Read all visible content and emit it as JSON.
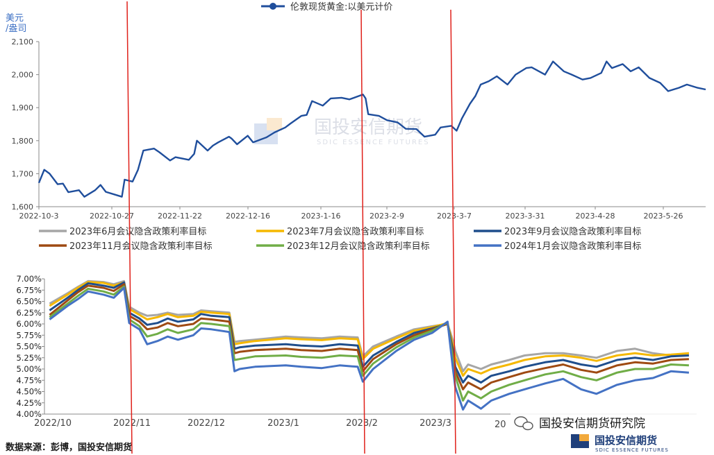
{
  "top_chart": {
    "unit_label_line1": "美元",
    "unit_label_line2": "/盎司",
    "legend_label": "伦敦现货黄金:以美元计价",
    "watermark_cn": "国投安信期货",
    "watermark_en": "SDIC ESSENCE FUTURES"
  },
  "bottom_chart": {
    "source_text": "数据来源：彭博，国投安信期货",
    "wechat_handle": "国投安信期货研究院",
    "logo_cn": "国投安信期货",
    "logo_en": "SDIC ESSENCE FUTURES",
    "partial_tick": "20"
  },
  "colors": {
    "gold_line": "#1f4e9c",
    "red_marker": "#e0201a",
    "series_jun": "#a6a6a6",
    "series_jul": "#f5b800",
    "series_sep": "#1f4e8c",
    "series_nov": "#9e4a12",
    "series_dec": "#70ad47",
    "series_jan": "#4472c4"
  },
  "chart_data": [
    {
      "type": "line",
      "ylabel": "美元/盎司",
      "ylim": [
        1600,
        2100
      ],
      "yticks": [
        "1,600",
        "1,700",
        "1,800",
        "1,900",
        "2,000",
        "2,100"
      ],
      "xticks": [
        "2022-10-3",
        "2022-10-27",
        "2022-11-22",
        "2022-12-16",
        "2023-1-16",
        "2023-2-9",
        "2023-3-7",
        "2023-3-31",
        "2023-4-28",
        "2023-5-26"
      ],
      "grid": "none",
      "legend_position": "top-center",
      "series": [
        {
          "name": "伦敦现货黄金:以美元计价",
          "x": [
            "2022-10-03",
            "2022-10-05",
            "2022-10-07",
            "2022-10-10",
            "2022-10-12",
            "2022-10-14",
            "2022-10-18",
            "2022-10-20",
            "2022-10-24",
            "2022-10-26",
            "2022-10-28",
            "2022-11-01",
            "2022-11-03",
            "2022-11-04",
            "2022-11-07",
            "2022-11-09",
            "2022-11-11",
            "2022-11-15",
            "2022-11-17",
            "2022-11-21",
            "2022-11-23",
            "2022-11-28",
            "2022-11-30",
            "2022-12-01",
            "2022-12-05",
            "2022-12-07",
            "2022-12-09",
            "2022-12-13",
            "2022-12-14",
            "2022-12-16",
            "2022-12-20",
            "2022-12-22",
            "2022-12-27",
            "2022-12-30",
            "2023-01-03",
            "2023-01-05",
            "2023-01-09",
            "2023-01-11",
            "2023-01-13",
            "2023-01-17",
            "2023-01-20",
            "2023-01-24",
            "2023-01-27",
            "2023-02-01",
            "2023-02-02",
            "2023-02-03",
            "2023-02-07",
            "2023-02-10",
            "2023-02-14",
            "2023-02-17",
            "2023-02-21",
            "2023-02-24",
            "2023-02-28",
            "2023-03-02",
            "2023-03-06",
            "2023-03-08",
            "2023-03-10",
            "2023-03-13",
            "2023-03-15",
            "2023-03-17",
            "2023-03-20",
            "2023-03-23",
            "2023-03-27",
            "2023-03-30",
            "2023-04-03",
            "2023-04-05",
            "2023-04-10",
            "2023-04-13",
            "2023-04-17",
            "2023-04-20",
            "2023-04-24",
            "2023-04-27",
            "2023-05-01",
            "2023-05-03",
            "2023-05-05",
            "2023-05-09",
            "2023-05-12",
            "2023-05-15",
            "2023-05-19",
            "2023-05-23",
            "2023-05-26",
            "2023-05-30",
            "2023-06-02",
            "2023-06-06",
            "2023-06-09"
          ],
          "values": [
            1672,
            1712,
            1700,
            1668,
            1670,
            1644,
            1650,
            1630,
            1650,
            1666,
            1645,
            1635,
            1630,
            1682,
            1676,
            1712,
            1770,
            1776,
            1765,
            1740,
            1750,
            1742,
            1760,
            1800,
            1770,
            1785,
            1795,
            1812,
            1806,
            1789,
            1815,
            1795,
            1810,
            1825,
            1840,
            1852,
            1875,
            1878,
            1920,
            1906,
            1928,
            1930,
            1925,
            1940,
            1928,
            1880,
            1875,
            1862,
            1855,
            1836,
            1835,
            1812,
            1818,
            1840,
            1845,
            1830,
            1868,
            1912,
            1935,
            1970,
            1980,
            1995,
            1970,
            2000,
            2020,
            2022,
            2000,
            2040,
            2010,
            2000,
            1985,
            1990,
            2005,
            2040,
            2020,
            2032,
            2010,
            2022,
            1990,
            1975,
            1950,
            1960,
            1970,
            1960,
            1955
          ]
        }
      ]
    },
    {
      "type": "line",
      "ylim": [
        4.0,
        7.0
      ],
      "yticks": [
        "4.00%",
        "4.25%",
        "4.50%",
        "4.75%",
        "5.00%",
        "5.25%",
        "5.50%",
        "5.75%",
        "6.00%",
        "6.25%",
        "6.50%",
        "6.75%",
        "7.00%"
      ],
      "xticks": [
        "2022/10",
        "2022/11",
        "2022/12",
        "2023/1",
        "2023/2",
        "2023/3"
      ],
      "grid": "none",
      "legend_position": "top",
      "x": [
        "2022-10-03",
        "2022-10-10",
        "2022-10-14",
        "2022-10-18",
        "2022-10-24",
        "2022-10-28",
        "2022-11-01",
        "2022-11-03",
        "2022-11-07",
        "2022-11-10",
        "2022-11-14",
        "2022-11-18",
        "2022-11-22",
        "2022-11-28",
        "2022-12-01",
        "2022-12-05",
        "2022-12-12",
        "2022-12-14",
        "2022-12-16",
        "2022-12-22",
        "2023-01-03",
        "2023-01-09",
        "2023-01-17",
        "2023-01-24",
        "2023-01-31",
        "2023-02-02",
        "2023-02-06",
        "2023-02-15",
        "2023-02-22",
        "2023-03-01",
        "2023-03-07",
        "2023-03-09",
        "2023-03-10",
        "2023-03-13",
        "2023-03-15",
        "2023-03-20",
        "2023-03-24",
        "2023-03-31",
        "2023-04-06",
        "2023-04-14",
        "2023-04-21",
        "2023-04-28",
        "2023-05-04",
        "2023-05-12",
        "2023-05-19",
        "2023-05-26",
        "2023-06-02",
        "2023-06-09"
      ],
      "series": [
        {
          "name": "2023年6月会议隐含政策利率目标",
          "values": [
            6.45,
            6.68,
            6.82,
            6.95,
            6.93,
            6.88,
            6.95,
            6.38,
            6.25,
            6.18,
            6.2,
            6.25,
            6.2,
            6.22,
            6.3,
            6.28,
            6.25,
            5.6,
            5.62,
            5.65,
            5.72,
            5.7,
            5.68,
            5.72,
            5.7,
            5.28,
            5.5,
            5.72,
            5.88,
            5.95,
            6.0,
            5.65,
            5.4,
            4.95,
            5.1,
            5.0,
            5.1,
            5.2,
            5.3,
            5.35,
            5.35,
            5.3,
            5.25,
            5.4,
            5.45,
            5.35,
            5.3,
            5.35
          ]
        },
        {
          "name": "2023年7月会议隐含政策利率目标",
          "values": [
            6.4,
            6.65,
            6.8,
            6.93,
            6.91,
            6.85,
            6.92,
            6.33,
            6.2,
            6.1,
            6.15,
            6.22,
            6.15,
            6.18,
            6.27,
            6.25,
            6.22,
            5.55,
            5.57,
            5.62,
            5.68,
            5.66,
            5.64,
            5.68,
            5.66,
            5.22,
            5.45,
            5.68,
            5.85,
            5.93,
            6.02,
            5.55,
            5.25,
            4.85,
            5.0,
            4.9,
            5.0,
            5.1,
            5.2,
            5.28,
            5.3,
            5.25,
            5.18,
            5.3,
            5.35,
            5.3,
            5.32,
            5.35
          ]
        },
        {
          "name": "2023年9月会议隐含政策利率目标",
          "values": [
            6.3,
            6.58,
            6.75,
            6.9,
            6.85,
            6.8,
            6.92,
            6.25,
            6.12,
            5.98,
            6.02,
            6.12,
            6.05,
            6.1,
            6.22,
            6.18,
            6.15,
            5.45,
            5.48,
            5.52,
            5.55,
            5.52,
            5.5,
            5.55,
            5.52,
            5.05,
            5.3,
            5.6,
            5.8,
            5.9,
            6.0,
            5.45,
            5.05,
            4.7,
            4.85,
            4.7,
            4.85,
            4.95,
            5.05,
            5.15,
            5.2,
            5.1,
            5.05,
            5.2,
            5.25,
            5.2,
            5.28,
            5.3
          ]
        },
        {
          "name": "2023年11月会议隐含政策利率目标",
          "values": [
            6.2,
            6.52,
            6.7,
            6.85,
            6.8,
            6.73,
            6.88,
            6.18,
            6.05,
            5.88,
            5.92,
            6.02,
            5.95,
            6.0,
            6.12,
            6.1,
            6.05,
            5.35,
            5.38,
            5.42,
            5.45,
            5.42,
            5.4,
            5.45,
            5.42,
            4.95,
            5.22,
            5.55,
            5.75,
            5.88,
            6.0,
            5.35,
            4.95,
            4.55,
            4.7,
            4.55,
            4.7,
            4.82,
            4.92,
            5.02,
            5.1,
            4.98,
            4.92,
            5.08,
            5.15,
            5.12,
            5.2,
            5.22
          ]
        },
        {
          "name": "2023年12月会议隐含政策利率目标",
          "values": [
            6.15,
            6.45,
            6.62,
            6.78,
            6.72,
            6.65,
            6.83,
            6.1,
            5.95,
            5.72,
            5.78,
            5.88,
            5.8,
            5.88,
            6.02,
            6.0,
            5.95,
            5.2,
            5.22,
            5.28,
            5.3,
            5.27,
            5.25,
            5.3,
            5.28,
            4.85,
            5.12,
            5.48,
            5.7,
            5.85,
            6.03,
            5.25,
            4.85,
            4.3,
            4.5,
            4.35,
            4.5,
            4.65,
            4.75,
            4.88,
            4.95,
            4.82,
            4.75,
            4.92,
            5.0,
            5.0,
            5.1,
            5.08
          ]
        },
        {
          "name": "2024年1月会议隐含政策利率目标",
          "values": [
            6.1,
            6.4,
            6.55,
            6.72,
            6.65,
            6.58,
            6.8,
            6.02,
            5.88,
            5.55,
            5.62,
            5.72,
            5.65,
            5.75,
            5.9,
            5.88,
            5.82,
            4.95,
            5.0,
            5.05,
            5.08,
            5.05,
            5.02,
            5.08,
            5.05,
            4.72,
            5.0,
            5.4,
            5.65,
            5.8,
            6.05,
            5.05,
            4.6,
            4.1,
            4.3,
            4.12,
            4.3,
            4.45,
            4.55,
            4.68,
            4.78,
            4.55,
            4.45,
            4.65,
            4.75,
            4.8,
            4.95,
            4.92
          ]
        }
      ]
    }
  ]
}
